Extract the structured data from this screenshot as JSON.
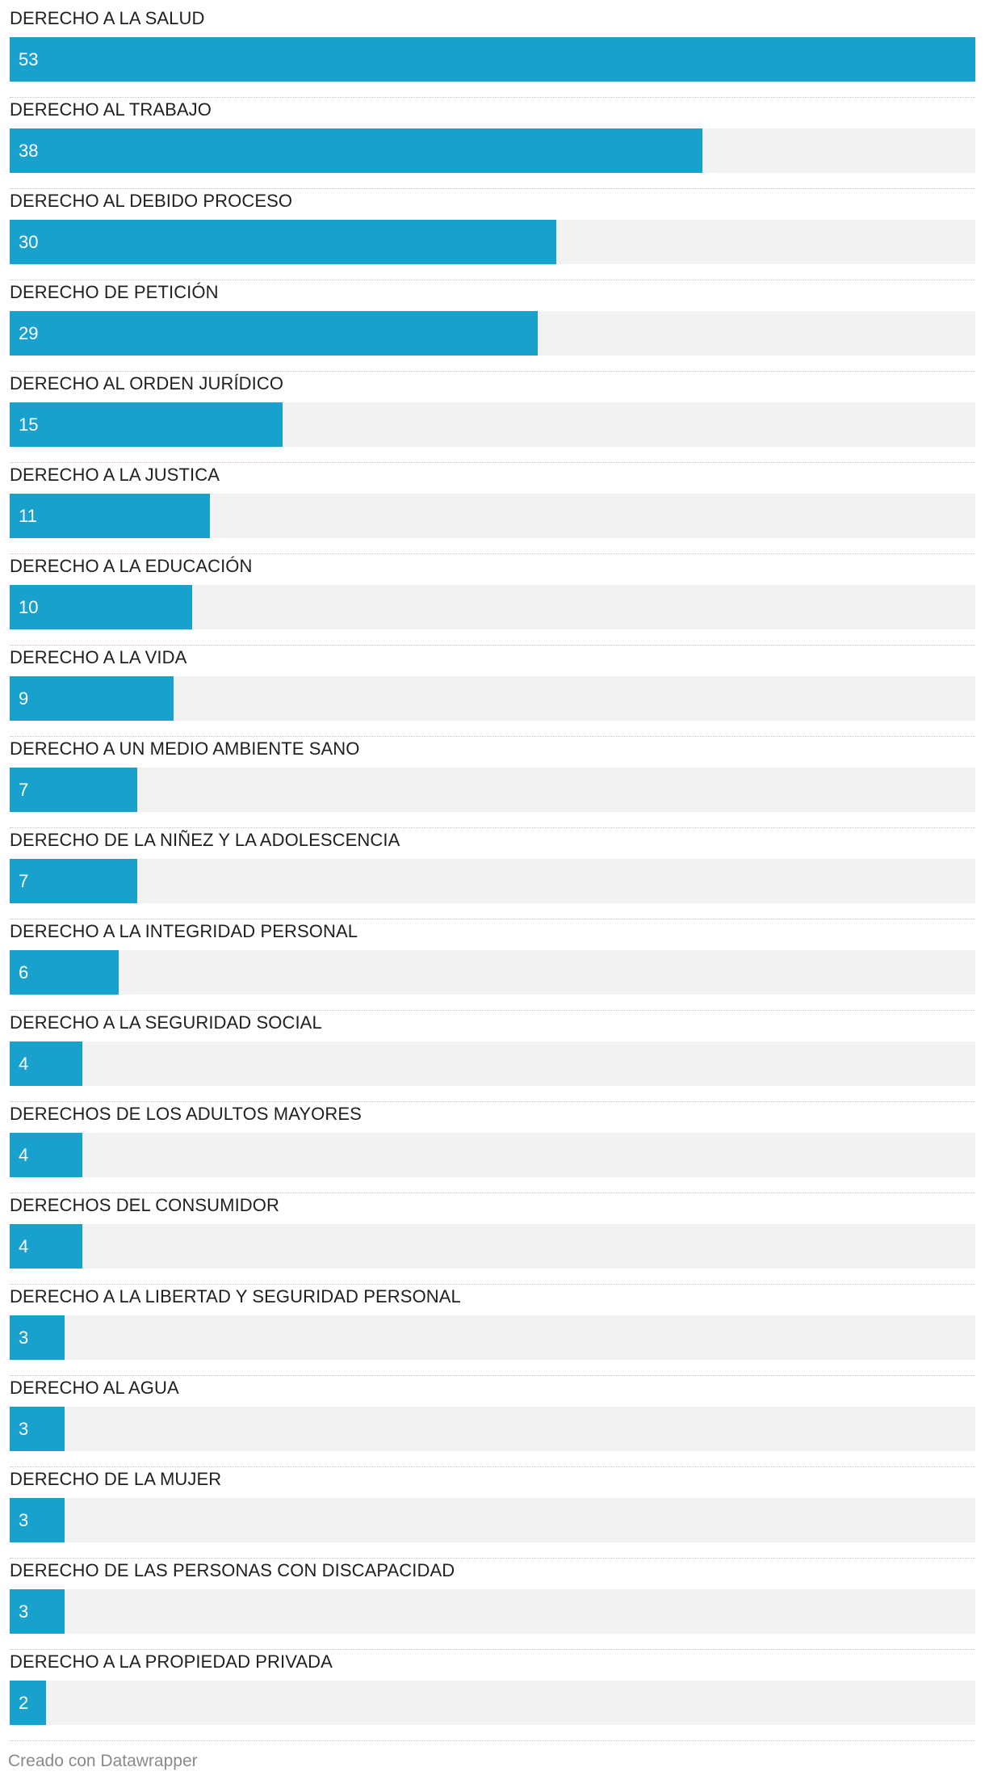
{
  "chart_data": {
    "type": "bar",
    "orientation": "horizontal",
    "categories": [
      "DERECHO A LA SALUD",
      "DERECHO AL TRABAJO",
      "DERECHO AL DEBIDO PROCESO",
      "DERECHO DE PETICIÓN",
      "DERECHO AL ORDEN JURÍDICO",
      "DERECHO A LA JUSTICA",
      "DERECHO A LA EDUCACIÓN",
      "DERECHO A LA VIDA",
      "DERECHO A UN MEDIO AMBIENTE SANO",
      "DERECHO DE LA NIÑEZ Y LA ADOLESCENCIA",
      "DERECHO A LA INTEGRIDAD PERSONAL",
      "DERECHO A LA SEGURIDAD SOCIAL",
      "DERECHOS DE LOS ADULTOS MAYORES",
      "DERECHOS DEL CONSUMIDOR",
      "DERECHO A LA LIBERTAD Y SEGURIDAD PERSONAL",
      "DERECHO AL AGUA",
      "DERECHO DE LA MUJER",
      "DERECHO DE LAS PERSONAS CON DISCAPACIDAD",
      "DERECHO A LA PROPIEDAD PRIVADA"
    ],
    "values": [
      53,
      38,
      30,
      29,
      15,
      11,
      10,
      9,
      7,
      7,
      6,
      4,
      4,
      4,
      3,
      3,
      3,
      3,
      2
    ],
    "xlim": [
      0,
      53
    ],
    "bar_color": "#18a1cd",
    "track_color": "#f2f2f2"
  },
  "footer": {
    "credit": "Creado con Datawrapper"
  }
}
